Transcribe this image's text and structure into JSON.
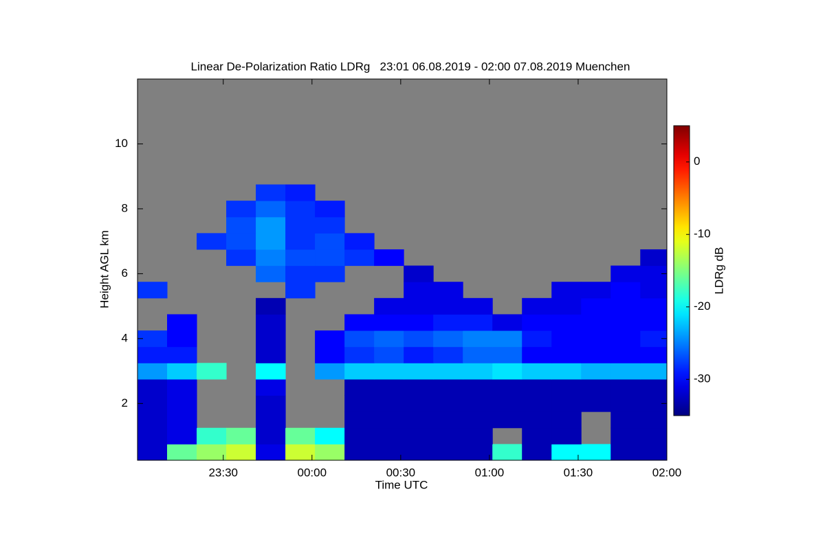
{
  "chart_data": {
    "type": "heatmap",
    "title": "Linear De-Polarization Ratio LDRg   23:01 06.08.2019 - 02:00 07.08.2019 Muenchen",
    "x_label": "Time UTC",
    "y_label": "Height AGL km",
    "colorbar_label": "LDRg dB",
    "background": "#808080",
    "colormap": "jet",
    "x": [
      6,
      16,
      26,
      36,
      46,
      56,
      66,
      76,
      86,
      96,
      106,
      116,
      126,
      136,
      146,
      156,
      166,
      176
    ],
    "y": [
      0.5,
      1.0,
      1.5,
      2.0,
      2.5,
      3.0,
      3.5,
      4.0,
      4.5,
      5.0,
      5.5,
      6.0,
      6.5,
      7.0,
      7.5,
      8.0,
      8.5
    ],
    "z": [
      [
        -32,
        -16,
        -14,
        -12,
        -31,
        -12,
        -14,
        -33,
        -33,
        -33,
        -33,
        -33,
        -18,
        -33,
        -20,
        -20,
        -33,
        -33
      ],
      [
        -32,
        -31,
        -18,
        -16,
        -32,
        -16,
        -20,
        -33,
        -33,
        -33,
        -33,
        -33,
        null,
        -33,
        -33,
        null,
        -33,
        -33
      ],
      [
        -32,
        -31,
        null,
        null,
        -32,
        null,
        null,
        -33,
        -33,
        -33,
        -33,
        -33,
        -33,
        -33,
        -33,
        null,
        -33,
        -33
      ],
      [
        -32,
        -31,
        null,
        null,
        -32,
        null,
        null,
        -33,
        -33,
        -33,
        -33,
        -33,
        -33,
        -33,
        -33,
        -33,
        -33,
        -33
      ],
      [
        -32,
        -31,
        null,
        null,
        -31,
        null,
        null,
        -33,
        -33,
        -33,
        -33,
        -33,
        -33,
        -33,
        -33,
        -33,
        -33,
        -33
      ],
      [
        -24,
        -22,
        -18,
        null,
        -20,
        null,
        -24,
        -22,
        -22,
        -22,
        -22,
        -22,
        -21,
        -22,
        -22,
        -23,
        -23,
        -23
      ],
      [
        -29,
        -29,
        null,
        null,
        -32,
        null,
        -30,
        -28,
        -27,
        -29,
        -28,
        -26,
        -26,
        -30,
        -30,
        -30,
        -30,
        -30
      ],
      [
        -28,
        -30,
        null,
        null,
        -32,
        null,
        -30,
        -27,
        -26,
        -27,
        -26,
        -25,
        -25,
        -29,
        -30,
        -30,
        -30,
        -29
      ],
      [
        null,
        -30,
        null,
        null,
        -32,
        null,
        null,
        -30,
        -30,
        -30,
        -29,
        -29,
        -31,
        -30,
        -30,
        -30,
        -30,
        -30
      ],
      [
        null,
        null,
        null,
        null,
        -33,
        null,
        null,
        null,
        -31,
        -31,
        -31,
        -31,
        null,
        -31,
        -31,
        -30,
        -30,
        -30
      ],
      [
        -28,
        null,
        null,
        null,
        null,
        -28,
        null,
        null,
        null,
        -31,
        -31,
        null,
        null,
        null,
        -31,
        -31,
        -30,
        -31
      ],
      [
        null,
        null,
        null,
        null,
        -26,
        -28,
        -28,
        null,
        null,
        -32,
        null,
        null,
        null,
        null,
        null,
        null,
        -31,
        -31
      ],
      [
        null,
        null,
        null,
        -28,
        -25,
        -27,
        -27,
        -28,
        -30,
        null,
        null,
        null,
        null,
        null,
        null,
        null,
        null,
        -32
      ],
      [
        null,
        null,
        -28,
        -27,
        -24,
        -28,
        -27,
        -29,
        null,
        null,
        null,
        null,
        null,
        null,
        null,
        null,
        null,
        null
      ],
      [
        null,
        null,
        null,
        -27,
        -24,
        -28,
        -28,
        null,
        null,
        null,
        null,
        null,
        null,
        null,
        null,
        null,
        null,
        null
      ],
      [
        null,
        null,
        null,
        -28,
        -26,
        -28,
        -29,
        null,
        null,
        null,
        null,
        null,
        null,
        null,
        null,
        null,
        null,
        null
      ],
      [
        null,
        null,
        null,
        null,
        -28,
        -29,
        null,
        null,
        null,
        null,
        null,
        null,
        null,
        null,
        null,
        null,
        null,
        null
      ]
    ],
    "xlim": [
      1,
      180
    ],
    "xticks": [
      {
        "value": 30,
        "label": "23:30"
      },
      {
        "value": 60,
        "label": "00:00"
      },
      {
        "value": 90,
        "label": "00:30"
      },
      {
        "value": 120,
        "label": "01:00"
      },
      {
        "value": 150,
        "label": "01:30"
      },
      {
        "value": 180,
        "label": "02:00"
      }
    ],
    "ylim": [
      0.25,
      12
    ],
    "yticks": [
      2,
      4,
      6,
      8,
      10
    ],
    "zlim": [
      -35,
      5
    ],
    "zticks": [
      0,
      -10,
      -20,
      -30
    ]
  }
}
